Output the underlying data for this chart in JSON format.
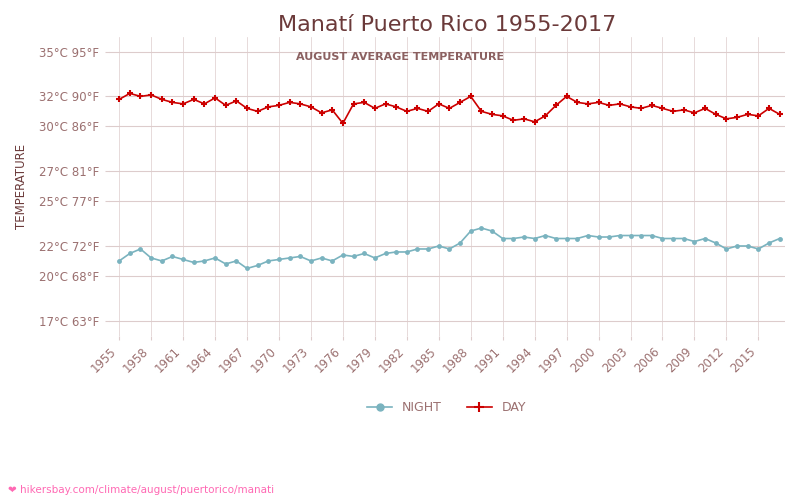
{
  "title": "Manatí Puerto Rico 1955-2017",
  "subtitle": "AUGUST AVERAGE TEMPERATURE",
  "ylabel": "TEMPERATURE",
  "url_text": "hikersbay.com/climate/august/puertorico/manati",
  "years": [
    1955,
    1956,
    1957,
    1958,
    1959,
    1960,
    1961,
    1962,
    1963,
    1964,
    1965,
    1966,
    1967,
    1968,
    1969,
    1970,
    1971,
    1972,
    1973,
    1974,
    1975,
    1976,
    1977,
    1978,
    1979,
    1980,
    1981,
    1982,
    1983,
    1984,
    1985,
    1986,
    1987,
    1988,
    1989,
    1990,
    1991,
    1992,
    1993,
    1994,
    1995,
    1996,
    1997,
    1998,
    1999,
    2000,
    2001,
    2002,
    2003,
    2004,
    2005,
    2006,
    2007,
    2008,
    2009,
    2010,
    2011,
    2012,
    2013,
    2014,
    2015,
    2016,
    2017
  ],
  "day_temps": [
    31.8,
    32.2,
    32.0,
    32.1,
    31.8,
    31.6,
    31.5,
    31.8,
    31.5,
    31.9,
    31.4,
    31.7,
    31.2,
    31.0,
    31.3,
    31.4,
    31.6,
    31.5,
    31.3,
    30.9,
    31.1,
    30.2,
    31.5,
    31.6,
    31.2,
    31.5,
    31.3,
    31.0,
    31.2,
    31.0,
    31.5,
    31.2,
    31.6,
    32.0,
    31.0,
    30.8,
    30.7,
    30.4,
    30.5,
    30.3,
    30.7,
    31.4,
    32.0,
    31.6,
    31.5,
    31.6,
    31.4,
    31.5,
    31.3,
    31.2,
    31.4,
    31.2,
    31.0,
    31.1,
    30.9,
    31.2,
    30.8,
    30.5,
    30.6,
    30.8,
    30.7,
    31.2,
    30.8
  ],
  "night_temps": [
    21.0,
    21.5,
    21.8,
    21.2,
    21.0,
    21.3,
    21.1,
    20.9,
    21.0,
    21.2,
    20.8,
    21.0,
    20.5,
    20.7,
    21.0,
    21.1,
    21.2,
    21.3,
    21.0,
    21.2,
    21.0,
    21.4,
    21.3,
    21.5,
    21.2,
    21.5,
    21.6,
    21.6,
    21.8,
    21.8,
    22.0,
    21.8,
    22.2,
    23.0,
    23.2,
    23.0,
    22.5,
    22.5,
    22.6,
    22.5,
    22.7,
    22.5,
    22.5,
    22.5,
    22.7,
    22.6,
    22.6,
    22.7,
    22.7,
    22.7,
    22.7,
    22.5,
    22.5,
    22.5,
    22.3,
    22.5,
    22.2,
    21.8,
    22.0,
    22.0,
    21.8,
    22.2,
    22.5
  ],
  "day_color": "#cc0000",
  "night_color": "#7ab3bf",
  "title_color": "#6b3a3a",
  "subtitle_color": "#8b6060",
  "axis_label_color": "#6b3a3a",
  "tick_color": "#9b7070",
  "grid_color": "#ddcccc",
  "background_color": "#ffffff",
  "yticks_c": [
    17,
    20,
    22,
    25,
    27,
    30,
    32,
    35
  ],
  "yticks_f": [
    63,
    68,
    72,
    77,
    81,
    86,
    90,
    95
  ],
  "ymin": 16,
  "ymax": 36,
  "xtick_years": [
    1955,
    1958,
    1961,
    1964,
    1967,
    1970,
    1973,
    1976,
    1979,
    1982,
    1985,
    1988,
    1991,
    1994,
    1997,
    2000,
    2003,
    2006,
    2009,
    2012,
    2015
  ]
}
